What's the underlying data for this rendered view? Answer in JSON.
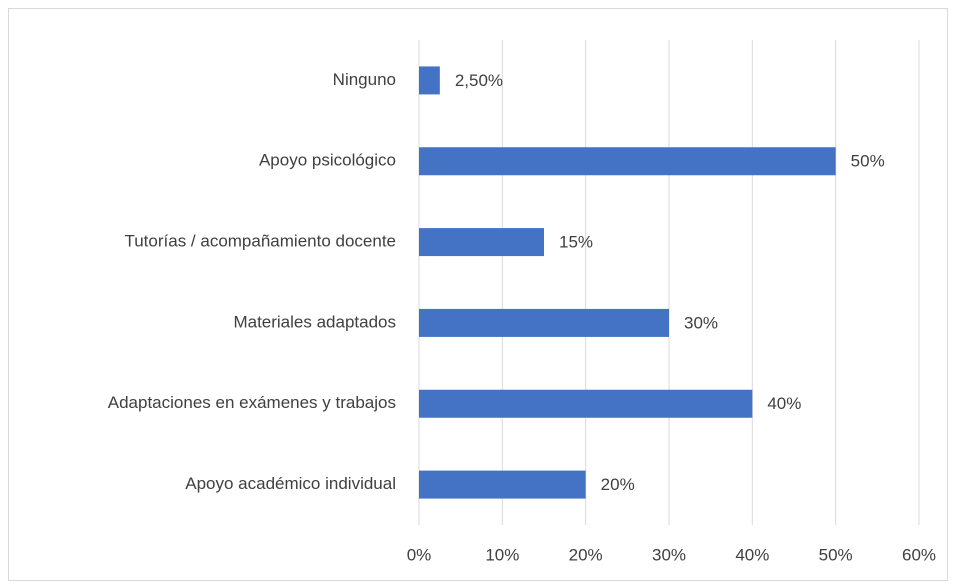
{
  "chart_data": {
    "type": "hbar",
    "categories": [
      "Ninguno",
      "Apoyo psicológico",
      "Tutorías / acompañamiento docente",
      "Materiales adaptados",
      "Adaptaciones en exámenes y trabajos",
      "Apoyo académico individual"
    ],
    "values": [
      2.5,
      50,
      15,
      30,
      40,
      20
    ],
    "value_labels": [
      "2,50%",
      "50%",
      "15%",
      "30%",
      "40%",
      "20%"
    ],
    "color": "#4472c4",
    "xlim": [
      0,
      60
    ],
    "xticks": [
      {
        "value": 0,
        "label": "0%"
      },
      {
        "value": 10,
        "label": "10%"
      },
      {
        "value": 20,
        "label": "20%"
      },
      {
        "value": 30,
        "label": "30%"
      },
      {
        "value": 40,
        "label": "40%"
      },
      {
        "value": 50,
        "label": "50%"
      },
      {
        "value": 60,
        "label": "60%"
      }
    ],
    "grid": true
  }
}
